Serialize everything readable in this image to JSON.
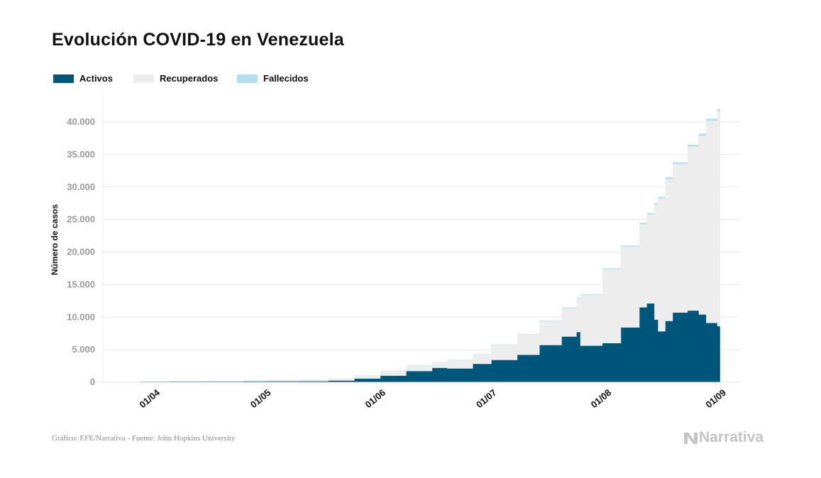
{
  "title": "Evolución COVID-19 en Venezuela",
  "legend": [
    {
      "label": "Activos",
      "color": "#00557a"
    },
    {
      "label": "Recuperados",
      "color": "#ededed"
    },
    {
      "label": "Fallecidos",
      "color": "#b3dfee"
    }
  ],
  "source": "Gráfico: EFE/Narrativa - Fuente: John Hopkins University",
  "brand": {
    "name": "Narrativa",
    "icon": "narrativa-logo-icon"
  },
  "chart_data": {
    "type": "area",
    "title": "Evolución COVID-19 en Venezuela",
    "ylabel": "Número de casos",
    "xlabel": "",
    "ylim": [
      0,
      42000
    ],
    "xlim": [
      "2020-03-14",
      "2020-09-01"
    ],
    "yticks": [
      0,
      5000,
      10000,
      15000,
      20000,
      25000,
      30000,
      35000,
      40000
    ],
    "yticklabels": [
      "0",
      "5.000",
      "10.000",
      "15.000",
      "20.000",
      "25.000",
      "30.000",
      "35.000",
      "40.000"
    ],
    "xticks": [
      "2020-04-01",
      "2020-05-01",
      "2020-06-01",
      "2020-07-01",
      "2020-08-01",
      "2020-09-01"
    ],
    "xticklabels": [
      "01/04",
      "01/05",
      "01/06",
      "01/07",
      "01/08",
      "01/09"
    ],
    "grid": true,
    "legend_position": "top-left",
    "stacked": true,
    "series_order": [
      "Activos",
      "Recuperados",
      "Fallecidos"
    ],
    "points": [
      {
        "date": "2020-03-15",
        "activos": 10,
        "total": 10,
        "fallecidos": 0
      },
      {
        "date": "2020-03-20",
        "activos": 40,
        "total": 42,
        "fallecidos": 0
      },
      {
        "date": "2020-03-28",
        "activos": 80,
        "total": 110,
        "fallecidos": 2
      },
      {
        "date": "2020-04-05",
        "activos": 90,
        "total": 160,
        "fallecidos": 7
      },
      {
        "date": "2020-04-15",
        "activos": 100,
        "total": 200,
        "fallecidos": 9
      },
      {
        "date": "2020-04-25",
        "activos": 120,
        "total": 300,
        "fallecidos": 10
      },
      {
        "date": "2020-05-01",
        "activos": 140,
        "total": 350,
        "fallecidos": 10
      },
      {
        "date": "2020-05-10",
        "activos": 150,
        "total": 390,
        "fallecidos": 10
      },
      {
        "date": "2020-05-18",
        "activos": 250,
        "total": 600,
        "fallecidos": 10
      },
      {
        "date": "2020-05-25",
        "activos": 550,
        "total": 1100,
        "fallecidos": 11
      },
      {
        "date": "2020-06-01",
        "activos": 1000,
        "total": 1800,
        "fallecidos": 17
      },
      {
        "date": "2020-06-08",
        "activos": 1700,
        "total": 2600,
        "fallecidos": 22
      },
      {
        "date": "2020-06-15",
        "activos": 2200,
        "total": 3100,
        "fallecidos": 26
      },
      {
        "date": "2020-06-19",
        "activos": 2100,
        "total": 3500,
        "fallecidos": 30
      },
      {
        "date": "2020-06-26",
        "activos": 2800,
        "total": 4300,
        "fallecidos": 37
      },
      {
        "date": "2020-07-01",
        "activos": 3400,
        "total": 5800,
        "fallecidos": 44
      },
      {
        "date": "2020-07-08",
        "activos": 4200,
        "total": 7400,
        "fallecidos": 60
      },
      {
        "date": "2020-07-14",
        "activos": 5700,
        "total": 9500,
        "fallecidos": 85
      },
      {
        "date": "2020-07-20",
        "activos": 7000,
        "total": 11500,
        "fallecidos": 110
      },
      {
        "date": "2020-07-24",
        "activos": 7700,
        "total": 13000,
        "fallecidos": 120
      },
      {
        "date": "2020-07-25",
        "activos": 5600,
        "total": 13500,
        "fallecidos": 125
      },
      {
        "date": "2020-07-31",
        "activos": 6000,
        "total": 17500,
        "fallecidos": 150
      },
      {
        "date": "2020-08-05",
        "activos": 8400,
        "total": 21000,
        "fallecidos": 180
      },
      {
        "date": "2020-08-10",
        "activos": 11500,
        "total": 24500,
        "fallecidos": 210
      },
      {
        "date": "2020-08-12",
        "activos": 12100,
        "total": 26000,
        "fallecidos": 225
      },
      {
        "date": "2020-08-14",
        "activos": 9600,
        "total": 27500,
        "fallecidos": 235
      },
      {
        "date": "2020-08-15",
        "activos": 7800,
        "total": 28500,
        "fallecidos": 240
      },
      {
        "date": "2020-08-17",
        "activos": 9400,
        "total": 31500,
        "fallecidos": 260
      },
      {
        "date": "2020-08-19",
        "activos": 10700,
        "total": 33800,
        "fallecidos": 280
      },
      {
        "date": "2020-08-23",
        "activos": 11000,
        "total": 36500,
        "fallecidos": 300
      },
      {
        "date": "2020-08-26",
        "activos": 10400,
        "total": 38200,
        "fallecidos": 320
      },
      {
        "date": "2020-08-28",
        "activos": 9100,
        "total": 40500,
        "fallecidos": 335
      },
      {
        "date": "2020-08-31",
        "activos": 8600,
        "total": 42000,
        "fallecidos": 350
      }
    ]
  }
}
